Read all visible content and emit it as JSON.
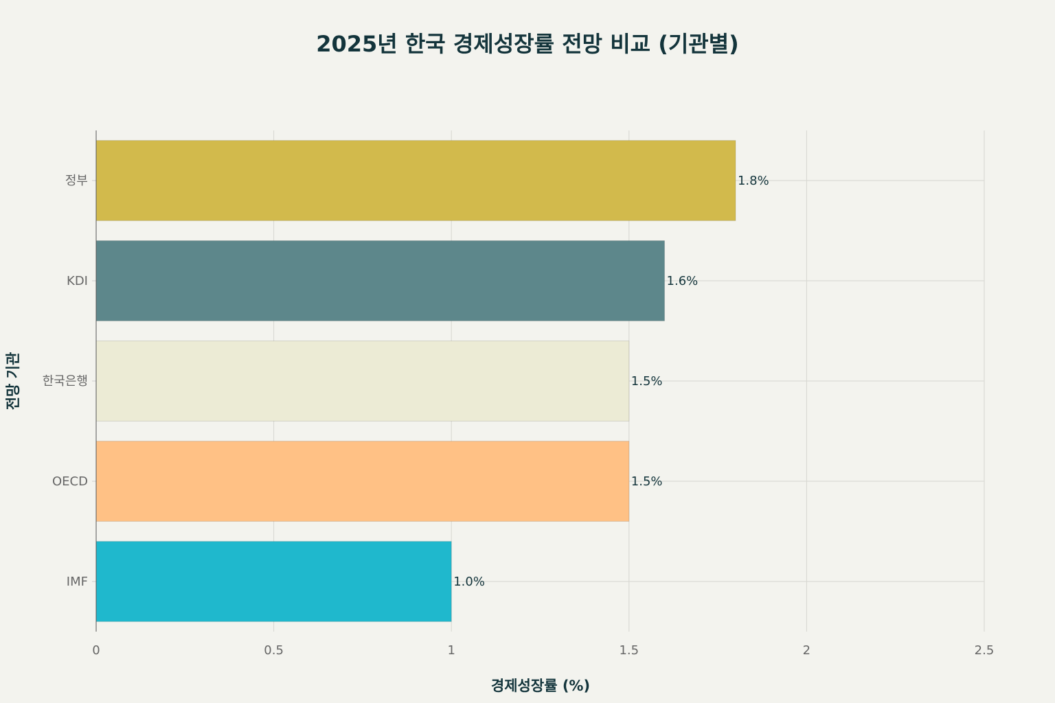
{
  "chart_data": {
    "type": "bar",
    "orientation": "horizontal",
    "title": "2025년 한국 경제성장률 전망 비교 (기관별)",
    "xlabel": "경제성장률 (%)",
    "ylabel": "전망 기관",
    "categories": [
      "정부",
      "KDI",
      "한국은행",
      "OECD",
      "IMF"
    ],
    "values": [
      1.8,
      1.6,
      1.5,
      1.5,
      1.0
    ],
    "data_labels": [
      "1.8%",
      "1.6%",
      "1.5%",
      "1.5%",
      "1.0%"
    ],
    "colors": [
      "#d2ba4c",
      "#5d878b",
      "#ecebd5",
      "#ffc185",
      "#1fb8cd"
    ],
    "xlim": [
      0,
      2.5
    ],
    "xticks": [
      0,
      0.5,
      1,
      1.5,
      2,
      2.5
    ],
    "xtick_labels": [
      "0",
      "0.5",
      "1",
      "1.5",
      "2",
      "2.5"
    ],
    "grid": true,
    "legend": "none"
  }
}
